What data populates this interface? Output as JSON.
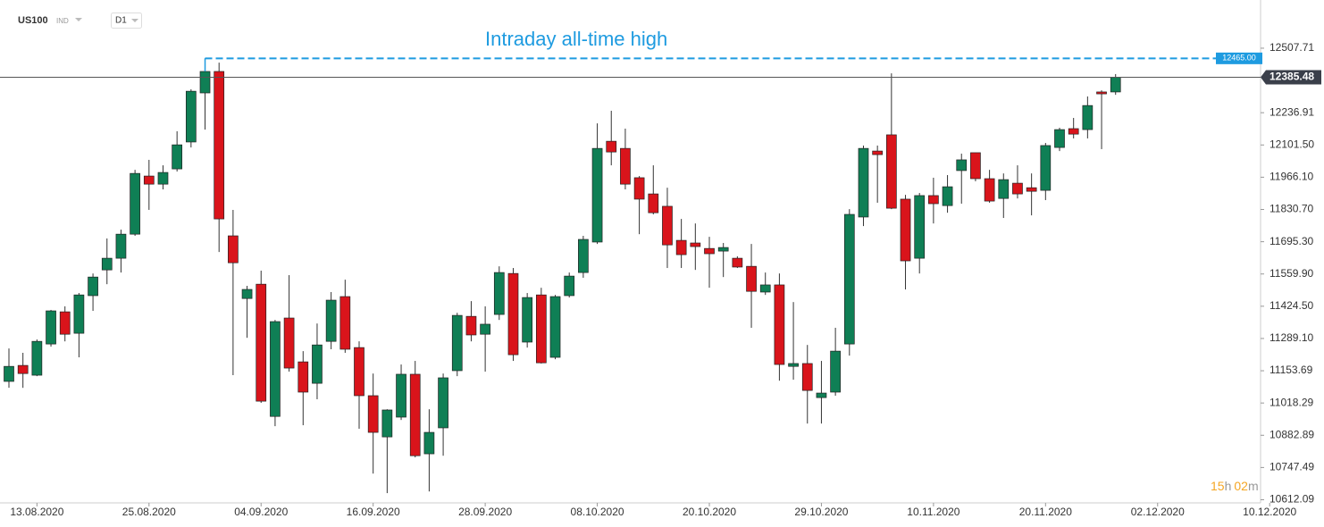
{
  "header": {
    "symbol": "US100",
    "instrument_type": "IND",
    "timeframe": "D1"
  },
  "timer": {
    "hours": "15",
    "h": "h",
    "minutes": "02",
    "m": "m"
  },
  "chart_data": {
    "type": "candlestick",
    "title": "Intraday all-time high",
    "up_color": "#0f7f55",
    "down_color": "#d9141b",
    "categories": [
      null,
      null,
      "13.08.2020",
      null,
      null,
      null,
      null,
      null,
      null,
      null,
      "25.08.2020",
      null,
      null,
      null,
      null,
      null,
      null,
      null,
      "04.09.2020",
      null,
      null,
      null,
      null,
      null,
      null,
      null,
      "16.09.2020",
      null,
      null,
      null,
      null,
      null,
      null,
      null,
      "28.09.2020",
      null,
      null,
      null,
      null,
      null,
      null,
      null,
      "08.10.2020",
      null,
      null,
      null,
      null,
      null,
      null,
      null,
      "20.10.2020",
      null,
      null,
      null,
      null,
      null,
      null,
      null,
      "29.10.2020",
      null,
      null,
      null,
      null,
      null,
      null,
      null,
      "10.11.2020",
      null,
      null,
      null,
      null,
      null,
      null,
      null,
      "20.11.2020",
      null,
      null,
      null,
      null,
      null,
      null,
      null,
      "02.12.2020",
      null,
      null,
      null,
      null,
      null,
      null,
      null,
      "10.12.2020"
    ],
    "open": [
      11109,
      11176,
      11135,
      11266,
      11401,
      11311,
      11469,
      11577,
      11626,
      11727,
      11971,
      11937,
      12001,
      12114,
      12320,
      12410,
      11720,
      11457,
      11517,
      10962,
      11375,
      11191,
      11101,
      11277,
      11465,
      11251,
      11049,
      10876,
      10959,
      11139,
      10805,
      10914,
      11154,
      11382,
      11307,
      11390,
      11562,
      11274,
      11472,
      11210,
      11469,
      11566,
      11694,
      12117,
      12087,
      11964,
      11896,
      11844,
      11701,
      11690,
      11667,
      11656,
      11626,
      11592,
      11484,
      11514,
      11172,
      11184,
      11041,
      11064,
      11266,
      11799,
      12076,
      12144,
      11874,
      11626,
      11889,
      11847,
      11994,
      12069,
      11960,
      11877,
      11941,
      11922,
      11911,
      12091,
      12170,
      12166,
      12324,
      12324,
      null,
      null,
      null,
      null,
      null,
      null,
      null,
      null,
      null,
      null,
      null
    ],
    "high": [
      11247,
      11229,
      11285,
      11409,
      11424,
      11480,
      11562,
      11709,
      11746,
      11997,
      12039,
      12016,
      12159,
      12335,
      12465,
      12447,
      11829,
      11510,
      11574,
      11367,
      11555,
      11236,
      11352,
      11484,
      11536,
      11277,
      11142,
      10992,
      11180,
      11195,
      10992,
      11142,
      11397,
      11446,
      11424,
      11592,
      11585,
      11480,
      11502,
      11472,
      11566,
      11720,
      12192,
      12245,
      12170,
      11971,
      12016,
      11922,
      11791,
      11772,
      11716,
      11690,
      11634,
      11686,
      11566,
      11562,
      11442,
      11262,
      11195,
      11334,
      11832,
      12099,
      12099,
      12402,
      11892,
      11900,
      11964,
      11975,
      12065,
      12069,
      11997,
      11982,
      12016,
      11982,
      12110,
      12174,
      12215,
      12305,
      12331,
      12399,
      null,
      null,
      null,
      null,
      null,
      null,
      null,
      null,
      null,
      null,
      null
    ],
    "low": [
      11082,
      11082,
      11131,
      11255,
      11277,
      11210,
      11405,
      11517,
      11566,
      11720,
      11829,
      11915,
      11990,
      12091,
      12166,
      11652,
      11135,
      11292,
      11019,
      10921,
      11150,
      10925,
      11034,
      11244,
      11229,
      10910,
      10722,
      10640,
      10947,
      10790,
      10647,
      10797,
      11131,
      11277,
      11150,
      11367,
      11195,
      11251,
      11184,
      11202,
      11461,
      11544,
      11686,
      12016,
      11915,
      11727,
      11810,
      11585,
      11585,
      11577,
      11502,
      11547,
      11585,
      11334,
      11472,
      11112,
      11116,
      10932,
      10932,
      11049,
      11217,
      11761,
      11859,
      11832,
      11495,
      11562,
      11772,
      11817,
      11855,
      11949,
      11859,
      11795,
      11877,
      11806,
      11870,
      12076,
      12129,
      12129,
      12084,
      12312,
      null,
      null,
      null,
      null,
      null,
      null,
      null,
      null,
      null,
      null,
      null
    ],
    "close": [
      11172,
      11142,
      11277,
      11405,
      11307,
      11472,
      11547,
      11626,
      11727,
      11982,
      11937,
      11986,
      12102,
      12327,
      12410,
      11791,
      11607,
      11495,
      11026,
      11360,
      11165,
      11064,
      11262,
      11450,
      11244,
      11049,
      10895,
      10989,
      11139,
      10797,
      10895,
      11124,
      11386,
      11304,
      11349,
      11566,
      11221,
      11461,
      11187,
      11465,
      11551,
      11705,
      12087,
      12072,
      11937,
      11874,
      11817,
      11682,
      11641,
      11675,
      11645,
      11671,
      11589,
      11487,
      11514,
      11180,
      11184,
      11071,
      11060,
      11236,
      11810,
      12087,
      12061,
      11836,
      11615,
      11889,
      11855,
      11926,
      12039,
      11960,
      11866,
      11956,
      11896,
      11907,
      12099,
      12166,
      12147,
      12267,
      12316,
      12385.48,
      null,
      null,
      null,
      null,
      null,
      null,
      null,
      null,
      null,
      null,
      null
    ],
    "ylim": [
      10599,
      12710
    ],
    "yticks": [
      12507.71,
      {
        "value": 12236.91,
        "label": "12236.91"
      },
      {
        "value": 12101.5,
        "label": "12101.50"
      },
      {
        "value": 11966.1,
        "label": "11966.10"
      },
      {
        "value": 11830.7,
        "label": "11830.70"
      },
      {
        "value": 11695.3,
        "label": "11695.30"
      },
      {
        "value": 11559.9,
        "label": "11559.90"
      },
      {
        "value": 11424.5,
        "label": "11424.50"
      },
      {
        "value": 11289.1,
        "label": "11289.10"
      },
      11153.69,
      11018.29,
      10882.89,
      10747.49,
      10612.09
    ],
    "last_price": 12385.48,
    "high_level": {
      "value": 12465,
      "label": "12465.00"
    },
    "grid": false
  }
}
